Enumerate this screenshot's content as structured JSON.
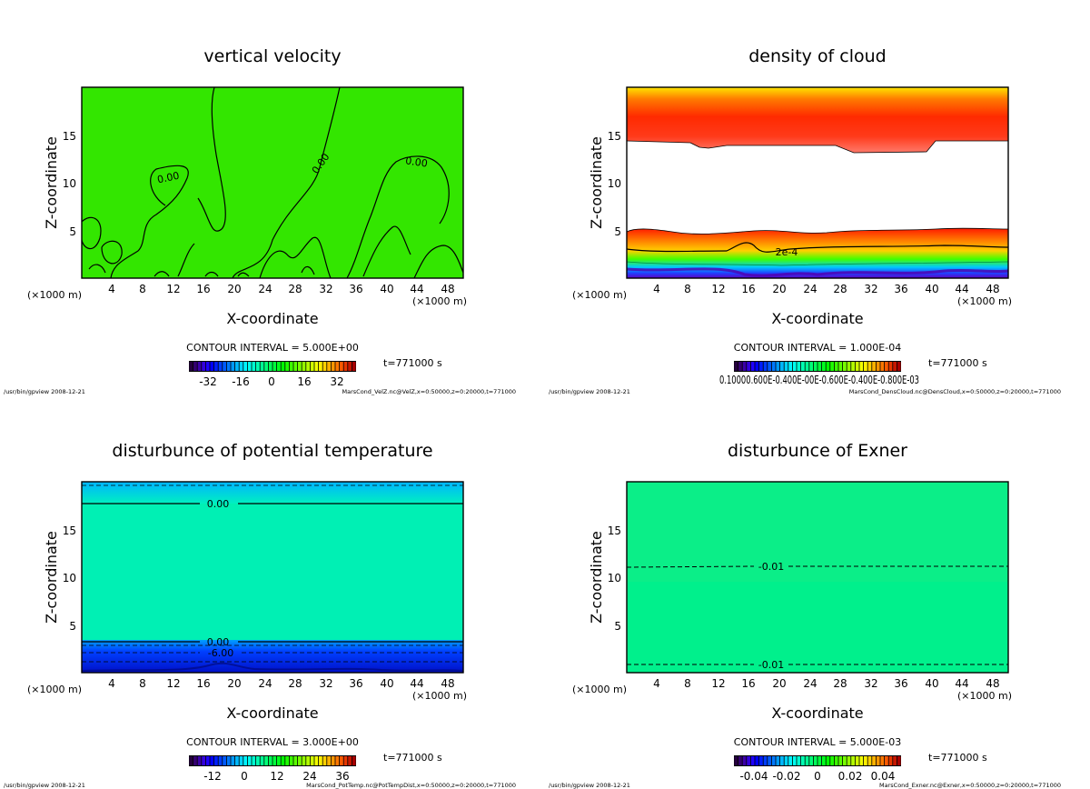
{
  "chart_data": [
    {
      "type": "heatmap",
      "title": "vertical velocity",
      "xlabel": "X-coordinate",
      "ylabel": "Z-coordinate",
      "x_unit": "(×1000 m)",
      "xlim": [
        0,
        50
      ],
      "ylim": [
        0,
        20
      ],
      "x_ticks": [
        4,
        8,
        12,
        16,
        20,
        24,
        28,
        32,
        36,
        40,
        44,
        48
      ],
      "y_ticks": [
        5,
        10,
        15
      ],
      "contour_interval": "CONTOUR INTERVAL = 5.000E+00",
      "time_label": "t=771000 s",
      "colorbar_labels": [
        "-32",
        "-16",
        "0",
        "16",
        "32"
      ],
      "contour_labels": [
        "0.00",
        "0.00",
        "0.00"
      ],
      "footer_left": "/usr/bin/gpview  2008-12-21",
      "footer_right": "MarsCond_VelZ.nc@VelZ,x=0:50000,z=0:20000,t=771000",
      "field_color": "#33e600"
    },
    {
      "type": "heatmap",
      "title": "density of cloud",
      "xlabel": "X-coordinate",
      "ylabel": "Z-coordinate",
      "x_unit": "(×1000 m)",
      "xlim": [
        0,
        50
      ],
      "ylim": [
        0,
        20
      ],
      "x_ticks": [
        4,
        8,
        12,
        16,
        20,
        24,
        28,
        32,
        36,
        40,
        44,
        48
      ],
      "y_ticks": [
        5,
        10,
        15
      ],
      "contour_interval": "CONTOUR INTERVAL = 1.000E-04",
      "time_label": "t=771000 s",
      "colorbar_labels": [
        "0.10000.600E-0.400E-00E-0.600E-0.400E-0.800E-03"
      ],
      "contour_labels": [
        "2e-4"
      ],
      "footer_left": "/usr/bin/gpview  2008-12-21",
      "footer_right": "MarsCond_DensCloud.nc@DensCloud,x=0:50000,z=0:20000,t=771000",
      "field_color": "#ffffff"
    },
    {
      "type": "heatmap",
      "title": "disturbunce of potential temperature",
      "xlabel": "X-coordinate",
      "ylabel": "Z-coordinate",
      "x_unit": "(×1000 m)",
      "xlim": [
        0,
        50
      ],
      "ylim": [
        0,
        20
      ],
      "x_ticks": [
        4,
        8,
        12,
        16,
        20,
        24,
        28,
        32,
        36,
        40,
        44,
        48
      ],
      "y_ticks": [
        5,
        10,
        15
      ],
      "contour_interval": "CONTOUR INTERVAL = 3.000E+00",
      "time_label": "t=771000 s",
      "colorbar_labels": [
        "-12",
        "0",
        "12",
        "24",
        "36"
      ],
      "contour_labels": [
        "0.00",
        "0.00",
        "-6.00"
      ],
      "footer_left": "/usr/bin/gpview  2008-12-21",
      "footer_right": "MarsCond_PotTemp.nc@PotTempDist,x=0:50000,z=0:20000,t=771000",
      "field_color": "#00f0b0"
    },
    {
      "type": "heatmap",
      "title": "disturbunce of Exner",
      "xlabel": "X-coordinate",
      "ylabel": "Z-coordinate",
      "x_unit": "(×1000 m)",
      "xlim": [
        0,
        50
      ],
      "ylim": [
        0,
        20
      ],
      "x_ticks": [
        4,
        8,
        12,
        16,
        20,
        24,
        28,
        32,
        36,
        40,
        44,
        48
      ],
      "y_ticks": [
        5,
        10,
        15
      ],
      "contour_interval": "CONTOUR INTERVAL = 5.000E-03",
      "time_label": "t=771000 s",
      "colorbar_labels": [
        "-0.04",
        "-0.02",
        "0",
        "0.02",
        "0.04"
      ],
      "contour_labels": [
        "-0.01",
        "-0.01"
      ],
      "footer_left": "/usr/bin/gpview  2008-12-21",
      "footer_right": "MarsCond_Exner.nc@Exner,x=0:50000,z=0:20000,t=771000",
      "field_color": "#00f08c"
    }
  ]
}
